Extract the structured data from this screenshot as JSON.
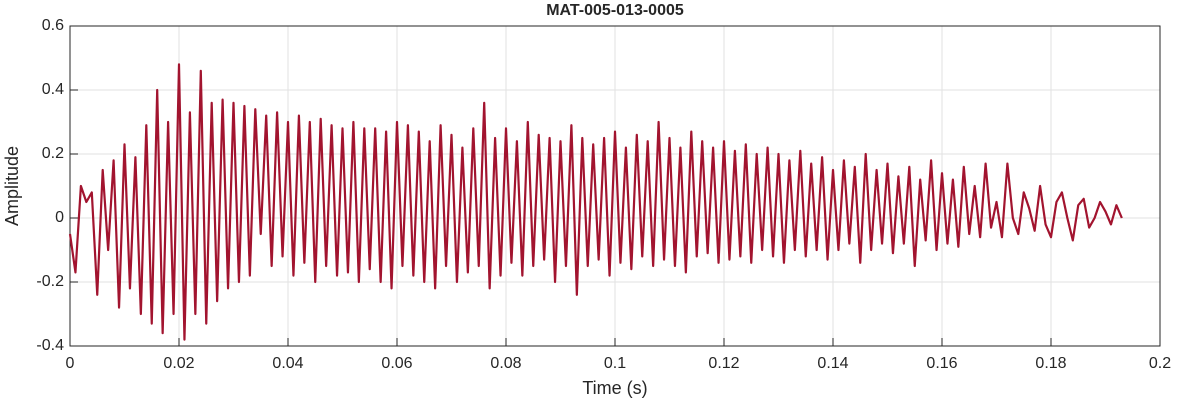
{
  "chart_data": {
    "type": "line",
    "title": "MAT-005-013-0005",
    "x_label": "Time (s)",
    "y_label": "Amplitude",
    "x": [
      0,
      0.001,
      0.002,
      0.003,
      0.004,
      0.005,
      0.006,
      0.007,
      0.008,
      0.009,
      0.01,
      0.011,
      0.012,
      0.013,
      0.014,
      0.015,
      0.016,
      0.017,
      0.018,
      0.019,
      0.02,
      0.021,
      0.022,
      0.023,
      0.024,
      0.025,
      0.026,
      0.027,
      0.028,
      0.029,
      0.03,
      0.031,
      0.032,
      0.033,
      0.034,
      0.035,
      0.036,
      0.037,
      0.038,
      0.039,
      0.04,
      0.041,
      0.042,
      0.043,
      0.044,
      0.045,
      0.046,
      0.047,
      0.048,
      0.049,
      0.05,
      0.051,
      0.052,
      0.053,
      0.054,
      0.055,
      0.056,
      0.057,
      0.058,
      0.059,
      0.06,
      0.061,
      0.062,
      0.063,
      0.064,
      0.065,
      0.066,
      0.067,
      0.068,
      0.069,
      0.07,
      0.071,
      0.072,
      0.073,
      0.074,
      0.075,
      0.076,
      0.077,
      0.078,
      0.079,
      0.08,
      0.081,
      0.082,
      0.083,
      0.084,
      0.085,
      0.086,
      0.087,
      0.088,
      0.089,
      0.09,
      0.091,
      0.092,
      0.093,
      0.094,
      0.095,
      0.096,
      0.097,
      0.098,
      0.099,
      0.1,
      0.101,
      0.102,
      0.103,
      0.104,
      0.105,
      0.106,
      0.107,
      0.108,
      0.109,
      0.11,
      0.111,
      0.112,
      0.113,
      0.114,
      0.115,
      0.116,
      0.117,
      0.118,
      0.119,
      0.12,
      0.121,
      0.122,
      0.123,
      0.124,
      0.125,
      0.126,
      0.127,
      0.128,
      0.129,
      0.13,
      0.131,
      0.132,
      0.133,
      0.134,
      0.135,
      0.136,
      0.137,
      0.138,
      0.139,
      0.14,
      0.141,
      0.142,
      0.143,
      0.144,
      0.145,
      0.146,
      0.147,
      0.148,
      0.149,
      0.15,
      0.151,
      0.152,
      0.153,
      0.154,
      0.155,
      0.156,
      0.157,
      0.158,
      0.159,
      0.16,
      0.161,
      0.162,
      0.163,
      0.164,
      0.165,
      0.166,
      0.167,
      0.168,
      0.169,
      0.17,
      0.171,
      0.172,
      0.173,
      0.174,
      0.175,
      0.176,
      0.177,
      0.178,
      0.179,
      0.18,
      0.181,
      0.182,
      0.183,
      0.184,
      0.185,
      0.186,
      0.187,
      0.188,
      0.189,
      0.19,
      0.191,
      0.192,
      0.193
    ],
    "series": [
      {
        "color": "#a2142f",
        "values": [
          -0.05,
          -0.17,
          0.1,
          0.05,
          0.08,
          -0.24,
          0.15,
          -0.1,
          0.18,
          -0.28,
          0.23,
          -0.22,
          0.19,
          -0.3,
          0.29,
          -0.33,
          0.4,
          -0.36,
          0.3,
          -0.3,
          0.48,
          -0.38,
          0.33,
          -0.3,
          0.46,
          -0.33,
          0.36,
          -0.26,
          0.37,
          -0.22,
          0.36,
          -0.2,
          0.35,
          -0.18,
          0.34,
          -0.05,
          0.32,
          -0.15,
          0.33,
          -0.12,
          0.3,
          -0.18,
          0.32,
          -0.14,
          0.3,
          -0.2,
          0.31,
          -0.15,
          0.29,
          -0.18,
          0.28,
          -0.17,
          0.3,
          -0.2,
          0.28,
          -0.16,
          0.28,
          -0.2,
          0.27,
          -0.22,
          0.3,
          -0.15,
          0.29,
          -0.18,
          0.27,
          -0.2,
          0.24,
          -0.22,
          0.29,
          -0.15,
          0.26,
          -0.2,
          0.22,
          -0.17,
          0.28,
          -0.15,
          0.36,
          -0.22,
          0.25,
          -0.18,
          0.28,
          -0.14,
          0.24,
          -0.18,
          0.3,
          -0.15,
          0.26,
          -0.13,
          0.25,
          -0.2,
          0.24,
          -0.15,
          0.29,
          -0.24,
          0.25,
          -0.15,
          0.23,
          -0.13,
          0.25,
          -0.18,
          0.27,
          -0.14,
          0.22,
          -0.16,
          0.26,
          -0.12,
          0.24,
          -0.15,
          0.3,
          -0.13,
          0.25,
          -0.15,
          0.22,
          -0.17,
          0.27,
          -0.12,
          0.24,
          -0.11,
          0.22,
          -0.14,
          0.24,
          -0.13,
          0.21,
          -0.12,
          0.23,
          -0.14,
          0.2,
          -0.1,
          0.22,
          -0.12,
          0.2,
          -0.14,
          0.18,
          -0.1,
          0.21,
          -0.12,
          0.17,
          -0.1,
          0.19,
          -0.13,
          0.15,
          -0.1,
          0.18,
          -0.08,
          0.16,
          -0.14,
          0.2,
          -0.1,
          0.15,
          -0.08,
          0.17,
          -0.11,
          0.13,
          -0.08,
          0.16,
          -0.15,
          0.12,
          -0.07,
          0.18,
          -0.1,
          0.14,
          -0.08,
          0.12,
          -0.09,
          0.16,
          -0.05,
          0.1,
          -0.06,
          0.17,
          -0.03,
          0.05,
          -0.06,
          0.17,
          0.0,
          -0.05,
          0.08,
          0.03,
          -0.04,
          0.1,
          -0.02,
          -0.06,
          0.05,
          0.08,
          0.0,
          -0.07,
          0.04,
          0.06,
          -0.03,
          0.0,
          0.05,
          0.02,
          -0.02,
          0.04,
          0.0
        ]
      }
    ],
    "xlim": [
      0,
      0.2
    ],
    "xticks": [
      0,
      0.02,
      0.04,
      0.06,
      0.08,
      0.1,
      0.12,
      0.14,
      0.16,
      0.18,
      0.2
    ],
    "ylim": [
      -0.4,
      0.6
    ],
    "yticks": [
      -0.4,
      -0.2,
      0,
      0.2,
      0.4,
      0.6
    ],
    "grid": true
  }
}
